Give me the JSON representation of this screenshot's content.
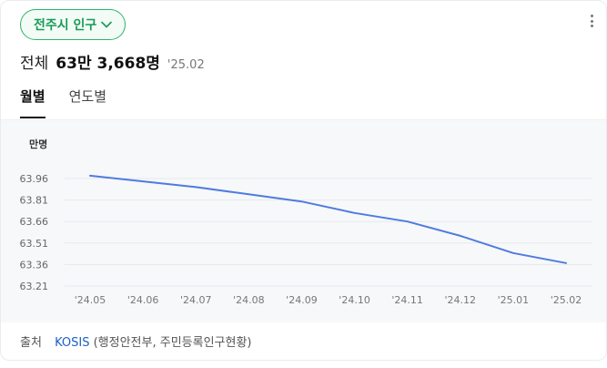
{
  "header": {
    "region_label": "전주시 인구",
    "more_icon": "more-vertical-icon"
  },
  "summary": {
    "label": "전체",
    "value": "63만 3,668명",
    "date": "'25.02"
  },
  "tabs": [
    {
      "label": "월별",
      "active": true
    },
    {
      "label": "연도별",
      "active": false
    }
  ],
  "chart_data": {
    "type": "line",
    "ylabel": "만명",
    "x": [
      "'24.05",
      "'24.06",
      "'24.07",
      "'24.08",
      "'24.09",
      "'24.10",
      "'24.11",
      "'24.12",
      "'25.01",
      "'25.02"
    ],
    "series": [
      {
        "values": [
          63.98,
          63.94,
          63.9,
          63.85,
          63.8,
          63.72,
          63.66,
          63.56,
          63.44,
          63.37
        ]
      }
    ],
    "yticks": [
      "63.96",
      "63.81",
      "63.66",
      "63.51",
      "63.36",
      "63.21"
    ],
    "ylim": [
      63.21,
      63.96
    ],
    "grid": true,
    "line_color": "#4f7be0"
  },
  "footer": {
    "source_label": "출처",
    "source_link": "KOSIS",
    "source_detail": "(행정안전부, 주민등록인구현황)"
  }
}
